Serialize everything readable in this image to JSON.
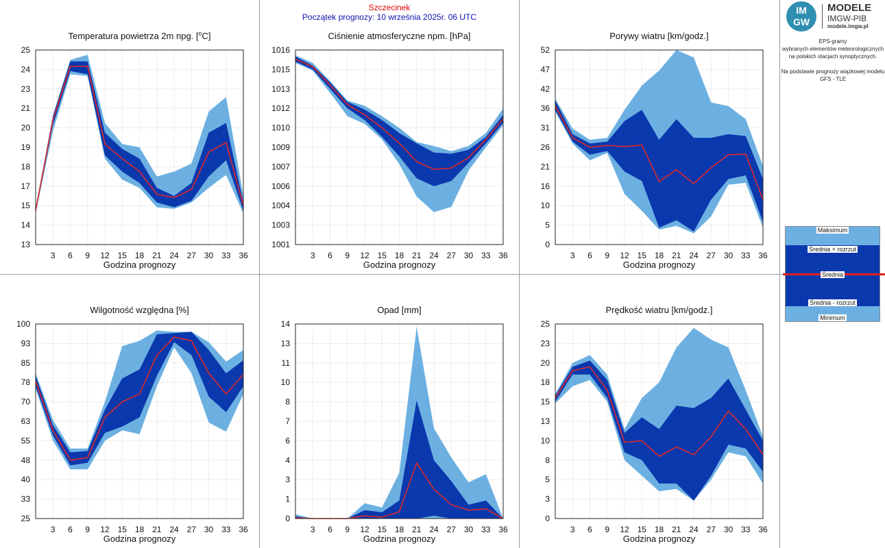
{
  "header": {
    "station": "Szczecinek",
    "forecast_start": "Początek prognozy: 10 września 2025r. 06 UTC"
  },
  "logo": {
    "circle_top": "IM",
    "circle_bottom": "GW",
    "line1": "MODELE",
    "line2": "IMGW-PIB",
    "line3": "modele.imgw.pl"
  },
  "side_description": {
    "line1": "EPS-gramy",
    "line2": "wybranych elementów meteorologicznych",
    "line3": "na polskich stacjach  synoptycznych.",
    "line4": "Na podstawie prognozy wiązkowej modelu",
    "line5": "GFS - TLE"
  },
  "legend": {
    "max": "Maksimum",
    "mean_plus": "Średnia + rozrzut",
    "mean": "Średnia",
    "mean_minus": "Średnia - rozrzut",
    "min": "Minimum"
  },
  "colors": {
    "outer_band": "#6cb0e2",
    "inner_band": "#0a38ad",
    "mean_line": "#e02828",
    "grid": "#c8c8c8",
    "divider": "#9a9a9a"
  },
  "chart_data": [
    {
      "type": "area",
      "title": "Temperatura powietrza 2m npg. [°C]",
      "xlabel": "Godzina prognozy",
      "x": [
        0,
        3,
        6,
        9,
        12,
        15,
        18,
        21,
        24,
        27,
        30,
        33,
        36
      ],
      "x_ticks": [
        "3",
        "6",
        "9",
        "12",
        "15",
        "18",
        "21",
        "24",
        "27",
        "30",
        "33",
        "36"
      ],
      "y_ticks": [
        "13",
        "14",
        "15",
        "17",
        "18",
        "19",
        "20",
        "21",
        "23",
        "24",
        "25"
      ],
      "ylim": [
        13,
        25
      ],
      "series": [
        {
          "name": "Maksimum",
          "values": [
            15.3,
            21.0,
            24.4,
            24.7,
            20.5,
            19.2,
            19.0,
            17.2,
            17.5,
            18.0,
            21.2,
            22.1,
            16.0
          ]
        },
        {
          "name": "Średnia + rozrzut",
          "values": [
            15.2,
            20.9,
            24.3,
            24.3,
            19.9,
            18.9,
            18.3,
            16.5,
            16.0,
            16.8,
            19.9,
            20.5,
            15.6
          ]
        },
        {
          "name": "Średnia",
          "values": [
            15.1,
            20.7,
            24.0,
            24.0,
            19.2,
            18.3,
            17.5,
            16.1,
            15.9,
            16.4,
            18.7,
            19.3,
            15.4
          ]
        },
        {
          "name": "Średnia - rozrzut",
          "values": [
            15.0,
            20.4,
            23.7,
            23.5,
            18.5,
            17.5,
            16.8,
            15.6,
            15.3,
            15.7,
            17.2,
            18.2,
            15.1
          ]
        },
        {
          "name": "Minimum",
          "values": [
            14.9,
            20.0,
            23.5,
            23.4,
            18.3,
            17.0,
            16.5,
            15.3,
            15.2,
            15.6,
            16.5,
            17.3,
            14.9
          ]
        }
      ]
    },
    {
      "type": "area",
      "title": "Ciśnienie atmosferyczne npm. [hPa]",
      "xlabel": "Godzina prognozy",
      "x": [
        0,
        3,
        6,
        9,
        12,
        15,
        18,
        21,
        24,
        27,
        30,
        33,
        36
      ],
      "x_ticks": [
        "3",
        "6",
        "9",
        "12",
        "15",
        "18",
        "21",
        "24",
        "27",
        "30",
        "33",
        "36"
      ],
      "y_ticks": [
        "1001",
        "1003",
        "1004",
        "1006",
        "1007",
        "1009",
        "1010",
        "1012",
        "1013",
        "1015",
        "1016"
      ],
      "ylim": [
        1001,
        1016
      ],
      "series": [
        {
          "name": "Maksimum",
          "values": [
            1015.6,
            1015.0,
            1013.6,
            1012.1,
            1011.7,
            1010.9,
            1010.0,
            1008.9,
            1008.6,
            1008.2,
            1008.6,
            1009.6,
            1011.5
          ]
        },
        {
          "name": "Średnia + rozrzut",
          "values": [
            1015.5,
            1014.8,
            1013.5,
            1012.0,
            1011.4,
            1010.6,
            1009.6,
            1008.8,
            1008.1,
            1008.0,
            1008.3,
            1009.3,
            1011.0
          ]
        },
        {
          "name": "Średnia",
          "values": [
            1015.3,
            1014.7,
            1013.3,
            1011.8,
            1011.0,
            1010.0,
            1008.8,
            1007.4,
            1006.8,
            1006.9,
            1007.7,
            1009.1,
            1010.7
          ]
        },
        {
          "name": "Średnia - rozrzut",
          "values": [
            1015.1,
            1014.5,
            1013.0,
            1011.5,
            1010.6,
            1009.3,
            1007.8,
            1006.1,
            1005.5,
            1005.9,
            1007.3,
            1008.8,
            1010.4
          ]
        },
        {
          "name": "Minimum",
          "values": [
            1015.0,
            1014.4,
            1012.7,
            1010.9,
            1010.3,
            1009.1,
            1007.2,
            1004.7,
            1003.5,
            1003.9,
            1006.7,
            1008.5,
            1010.2
          ]
        }
      ]
    },
    {
      "type": "area",
      "title": "Porywy wiatru [km/godz.]",
      "xlabel": "Godzina prognozy",
      "x": [
        0,
        3,
        6,
        9,
        12,
        15,
        18,
        21,
        24,
        27,
        30,
        33,
        36
      ],
      "x_ticks": [
        "3",
        "6",
        "9",
        "12",
        "15",
        "18",
        "21",
        "24",
        "27",
        "30",
        "33",
        "36"
      ],
      "y_ticks": [
        "0",
        "5",
        "10",
        "16",
        "21",
        "26",
        "31",
        "36",
        "42",
        "47",
        "52"
      ],
      "ylim": [
        0,
        52
      ],
      "series": [
        {
          "name": "Maksimum",
          "values": [
            39.0,
            31.0,
            28.0,
            28.5,
            36.0,
            42.5,
            46.5,
            52.0,
            50.0,
            38.0,
            37.0,
            33.5,
            21.0
          ]
        },
        {
          "name": "Średnia + rozrzut",
          "values": [
            38.5,
            29.5,
            27.0,
            27.5,
            33.0,
            36.0,
            28.0,
            33.5,
            28.5,
            28.5,
            29.5,
            29.0,
            17.5
          ]
        },
        {
          "name": "Średnia",
          "values": [
            37.0,
            28.5,
            26.0,
            26.5,
            26.2,
            26.6,
            16.8,
            20.0,
            16.3,
            20.5,
            24.0,
            24.2,
            12.0
          ]
        },
        {
          "name": "Średnia - rozrzut",
          "values": [
            36.0,
            27.5,
            24.0,
            25.0,
            19.5,
            17.0,
            4.5,
            6.5,
            3.5,
            12.0,
            17.5,
            18.5,
            6.0
          ]
        },
        {
          "name": "Minimum",
          "values": [
            35.5,
            27.0,
            22.5,
            24.5,
            13.5,
            9.0,
            4.0,
            5.0,
            3.0,
            7.5,
            16.0,
            16.5,
            4.5
          ]
        }
      ]
    },
    {
      "type": "area",
      "title": "Wilgotność względna [%]",
      "xlabel": "Godzina prognozy",
      "x": [
        0,
        3,
        6,
        9,
        12,
        15,
        18,
        21,
        24,
        27,
        30,
        33,
        36
      ],
      "x_ticks": [
        "3",
        "6",
        "9",
        "12",
        "15",
        "18",
        "21",
        "24",
        "27",
        "30",
        "33",
        "36"
      ],
      "y_ticks": [
        "25",
        "33",
        "40",
        "48",
        "55",
        "63",
        "70",
        "78",
        "85",
        "93",
        "100"
      ],
      "ylim": [
        25,
        100
      ],
      "series": [
        {
          "name": "Maksimum",
          "values": [
            81.0,
            63.0,
            52.0,
            52.0,
            70.0,
            91.5,
            93.5,
            97.5,
            97.0,
            97.0,
            93.0,
            85.5,
            90.0
          ]
        },
        {
          "name": "Średnia + rozrzut",
          "values": [
            80.0,
            61.0,
            50.5,
            51.0,
            67.0,
            79.0,
            82.5,
            96.0,
            96.5,
            97.0,
            90.0,
            81.0,
            86.0
          ]
        },
        {
          "name": "Średnia",
          "values": [
            78.0,
            59.0,
            47.5,
            48.5,
            64.0,
            70.0,
            73.0,
            88.0,
            95.0,
            93.5,
            81.0,
            73.0,
            80.5
          ]
        },
        {
          "name": "Średnia - rozrzut",
          "values": [
            76.0,
            57.0,
            45.5,
            46.5,
            58.0,
            60.5,
            64.0,
            80.0,
            93.0,
            88.0,
            72.0,
            66.0,
            76.0
          ]
        },
        {
          "name": "Minimum",
          "values": [
            75.0,
            55.0,
            44.0,
            44.0,
            55.0,
            59.0,
            57.5,
            76.0,
            91.0,
            81.0,
            62.0,
            58.5,
            73.0
          ]
        }
      ]
    },
    {
      "type": "area",
      "title": "Opad [mm]",
      "xlabel": "Godzina prognozy",
      "x": [
        0,
        3,
        6,
        9,
        12,
        15,
        18,
        21,
        24,
        27,
        30,
        33,
        36
      ],
      "x_ticks": [
        "3",
        "6",
        "9",
        "12",
        "15",
        "18",
        "21",
        "24",
        "27",
        "30",
        "33",
        "36"
      ],
      "y_ticks": [
        "0",
        "1",
        "3",
        "4",
        "6",
        "7",
        "8",
        "10",
        "11",
        "13",
        "14"
      ],
      "ylim": [
        0,
        14
      ],
      "series": [
        {
          "name": "Maksimum",
          "values": [
            0.3,
            0.0,
            0.0,
            0.0,
            1.1,
            0.8,
            3.3,
            13.8,
            6.5,
            4.4,
            2.6,
            3.2,
            0.0
          ]
        },
        {
          "name": "Średnia + rozrzut",
          "values": [
            0.15,
            0.0,
            0.0,
            0.0,
            0.6,
            0.45,
            1.3,
            8.5,
            4.2,
            2.7,
            1.0,
            1.3,
            0.0
          ]
        },
        {
          "name": "Średnia",
          "values": [
            0.05,
            0.0,
            0.0,
            0.0,
            0.2,
            0.1,
            0.5,
            4.0,
            2.1,
            1.0,
            0.6,
            0.7,
            0.0
          ]
        },
        {
          "name": "Średnia - rozrzut",
          "values": [
            0.0,
            0.0,
            0.0,
            0.0,
            0.0,
            0.0,
            0.0,
            0.0,
            0.2,
            0.0,
            0.0,
            0.0,
            0.0
          ]
        },
        {
          "name": "Minimum",
          "values": [
            0.0,
            0.0,
            0.0,
            0.0,
            0.0,
            0.0,
            0.0,
            0.0,
            0.0,
            0.0,
            0.0,
            0.0,
            0.0
          ]
        }
      ]
    },
    {
      "type": "area",
      "title": "Prędkość wiatru [km/godz.]",
      "xlabel": "Godzina prognozy",
      "x": [
        0,
        3,
        6,
        9,
        12,
        15,
        18,
        21,
        24,
        27,
        30,
        33,
        36
      ],
      "x_ticks": [
        "3",
        "6",
        "9",
        "12",
        "15",
        "18",
        "21",
        "24",
        "27",
        "30",
        "33",
        "36"
      ],
      "y_ticks": [
        "0",
        "3",
        "5",
        "8",
        "10",
        "13",
        "15",
        "18",
        "20",
        "23",
        "25"
      ],
      "ylim": [
        0,
        25
      ],
      "series": [
        {
          "name": "Maksimum",
          "values": [
            16.0,
            20.0,
            21.0,
            18.5,
            11.5,
            15.5,
            17.5,
            22.0,
            24.5,
            23.0,
            22.0,
            16.5,
            10.5
          ]
        },
        {
          "name": "Średnia + rozrzut",
          "values": [
            15.8,
            19.5,
            20.3,
            17.8,
            11.0,
            13.0,
            11.5,
            14.5,
            14.2,
            15.5,
            18.0,
            14.0,
            10.0
          ]
        },
        {
          "name": "Średnia",
          "values": [
            15.5,
            19.0,
            19.5,
            16.5,
            9.8,
            10.0,
            8.0,
            9.2,
            8.2,
            10.5,
            13.8,
            11.5,
            8.2
          ]
        },
        {
          "name": "Średnia - rozrzut",
          "values": [
            15.0,
            18.5,
            18.5,
            15.5,
            8.5,
            7.5,
            4.5,
            4.5,
            2.3,
            5.5,
            9.5,
            9.0,
            6.0
          ]
        },
        {
          "name": "Minimum",
          "values": [
            14.8,
            17.0,
            17.8,
            15.0,
            7.5,
            5.5,
            3.5,
            3.8,
            2.3,
            5.0,
            8.5,
            8.0,
            4.5
          ]
        }
      ]
    }
  ]
}
